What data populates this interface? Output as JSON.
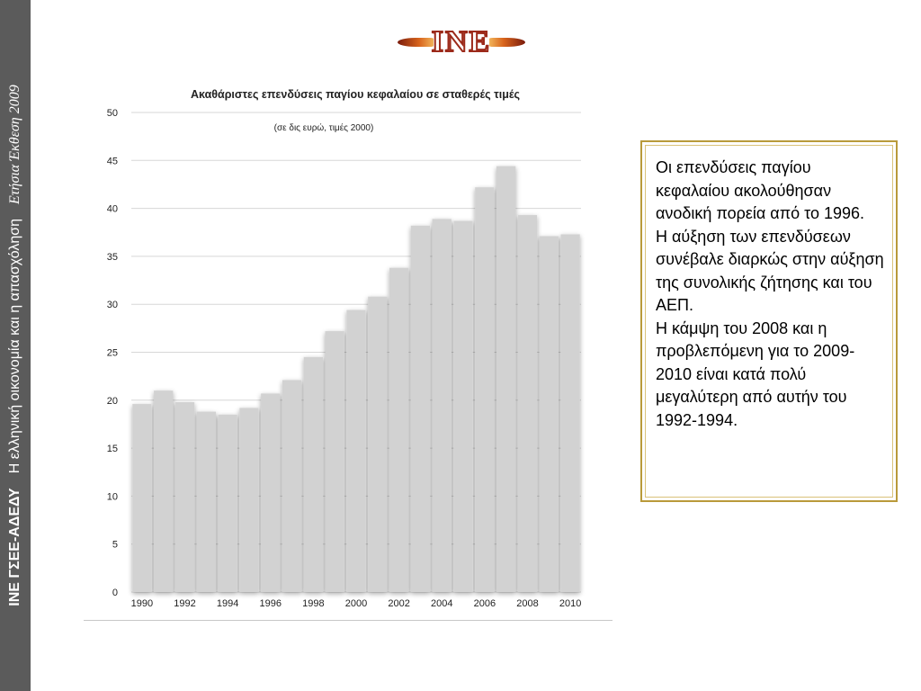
{
  "side": {
    "org": "ΙΝΕ ΓΣΕΕ-ΑΔΕΔΥ",
    "title": "Η ελληνική οικονομία  και η απασχόληση",
    "annual": "Ετήσια Έκθεση 2009"
  },
  "logo": {
    "text": "INE"
  },
  "chart_data": {
    "type": "bar",
    "title": "Ακαθάριστες επενδύσεις παγίου κεφαλαίου σε σταθερές τιμές",
    "subtitle": "(σε δις ευρώ, τιμές 2000)",
    "categories": [
      "1990",
      "1991",
      "1992",
      "1993",
      "1994",
      "1995",
      "1996",
      "1997",
      "1998",
      "1999",
      "2000",
      "2001",
      "2002",
      "2003",
      "2004",
      "2005",
      "2006",
      "2007",
      "2008",
      "2009",
      "2010"
    ],
    "values": [
      19.6,
      21.0,
      19.8,
      18.8,
      18.5,
      19.2,
      20.7,
      22.1,
      24.5,
      27.2,
      29.4,
      30.8,
      33.8,
      38.2,
      38.9,
      38.7,
      42.2,
      44.4,
      39.3,
      37.1,
      37.3
    ],
    "x_tick_labels": [
      "1990",
      "1992",
      "1994",
      "1996",
      "1998",
      "2000",
      "2002",
      "2004",
      "2006",
      "2008",
      "2010"
    ],
    "y_tick_labels": [
      "0",
      "5",
      "10",
      "15",
      "20",
      "25",
      "30",
      "35",
      "40",
      "45",
      "50"
    ],
    "ylim": [
      0,
      50
    ],
    "grid": true,
    "bar_color": "#d2d2d2"
  },
  "note": {
    "lines": [
      "Οι επενδύσεις παγίου κεφαλαίου ακολούθησαν ανοδική πορεία από το 1996.",
      "Η αύξηση των επενδύσεων συνέβαλε διαρκώς στην αύξηση της συνολικής ζήτησης και του ΑΕΠ.",
      "Η κάμψη του 2008 και η προβλεπόμενη για το 2009-2010 είναι κατά πολύ μεγαλύτερη από αυτήν του 1992-1994."
    ]
  }
}
